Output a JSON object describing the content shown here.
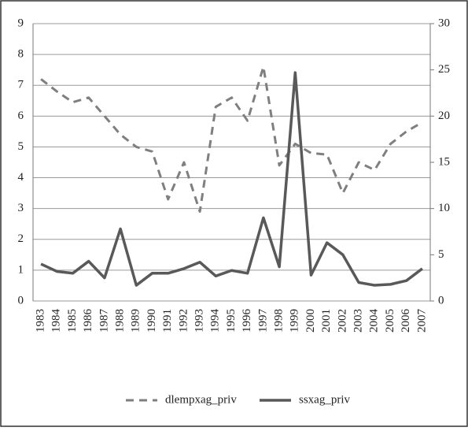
{
  "chart_data": {
    "type": "line",
    "categories": [
      "1983",
      "1984",
      "1985",
      "1986",
      "1987",
      "1988",
      "1989",
      "1990",
      "1991",
      "1992",
      "1993",
      "1994",
      "1995",
      "1996",
      "1997",
      "1998",
      "1999",
      "2000",
      "2001",
      "2002",
      "2003",
      "2004",
      "2005",
      "2006",
      "2007"
    ],
    "series": [
      {
        "name": "dlempxag_priv",
        "color": "#7f7f7f",
        "dash": true,
        "values": [
          7.2,
          6.8,
          6.45,
          6.6,
          6.0,
          5.4,
          5.0,
          4.85,
          3.3,
          4.5,
          2.9,
          6.3,
          6.6,
          5.85,
          7.6,
          4.4,
          5.1,
          4.8,
          4.75,
          3.5,
          4.5,
          4.25,
          5.1,
          5.5,
          5.8
        ]
      },
      {
        "name": "ssxag_priv",
        "color": "#595959",
        "dash": false,
        "axis": "y2",
        "values": [
          4.0,
          3.2,
          3.0,
          4.3,
          2.5,
          7.8,
          1.7,
          3.0,
          3.0,
          3.5,
          4.2,
          2.7,
          3.3,
          3.0,
          9.0,
          3.7,
          24.7,
          2.8,
          6.3,
          5.0,
          2.0,
          1.7,
          1.8,
          2.2,
          3.5
        ]
      }
    ],
    "ylim": [
      0,
      9
    ],
    "yticks": [
      0,
      1,
      2,
      3,
      4,
      5,
      6,
      7,
      8,
      9
    ],
    "y2lim": [
      0,
      30
    ],
    "y2ticks": [
      0,
      5,
      10,
      15,
      20,
      25,
      30
    ],
    "grid": true,
    "legend": "bottom"
  }
}
